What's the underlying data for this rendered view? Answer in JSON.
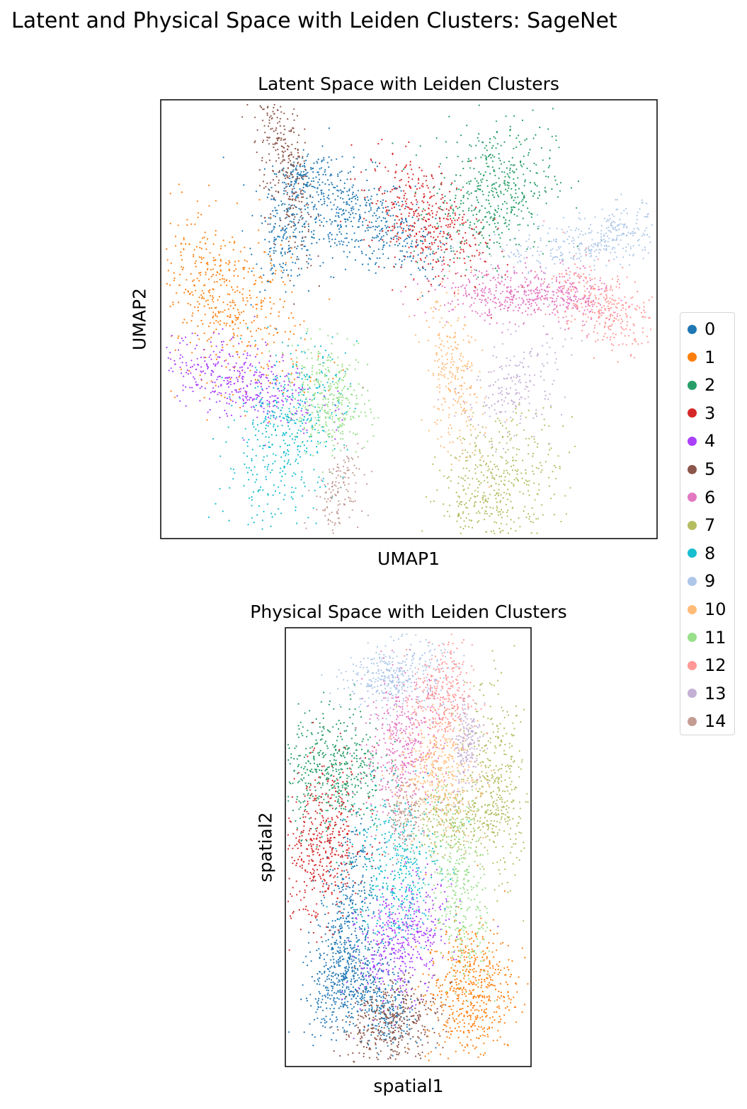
{
  "figure": {
    "suptitle": "Latent and Physical Space with Leiden Clusters: SageNet"
  },
  "colors": {
    "0": "#1f77b4",
    "1": "#ff7f0e",
    "2": "#279e68",
    "3": "#d62728",
    "4": "#aa40fc",
    "5": "#8c564b",
    "6": "#e377c2",
    "7": "#b5bd61",
    "8": "#17becf",
    "9": "#aec7e8",
    "10": "#ffbb78",
    "11": "#98df8a",
    "12": "#ff9896",
    "13": "#c5b0d5",
    "14": "#c49c94"
  },
  "legend": {
    "title": "",
    "placement": "right-center",
    "entries": [
      "0",
      "1",
      "2",
      "3",
      "4",
      "5",
      "6",
      "7",
      "8",
      "9",
      "10",
      "11",
      "12",
      "13",
      "14"
    ]
  },
  "chart_data": [
    {
      "type": "scatter",
      "title": "Latent Space with Leiden Clusters",
      "xlabel": "UMAP1",
      "ylabel": "UMAP2",
      "xlim": [
        0,
        100
      ],
      "ylim": [
        0,
        100
      ],
      "ticks": "none",
      "grid": false,
      "color_by": "leiden",
      "clusters": [
        {
          "label": "0",
          "blobs": [
            [
              37,
              74,
              7,
              6,
              420,
              -0.3
            ],
            [
              25,
              68,
              3,
              5,
              160,
              0.2
            ],
            [
              28,
              82,
              3,
              3,
              120,
              0.4
            ],
            [
              49,
              68,
              4,
              4,
              120,
              -0.3
            ]
          ]
        },
        {
          "label": "1",
          "blobs": [
            [
              13,
              54,
              8,
              10,
              520,
              -0.4
            ]
          ]
        },
        {
          "label": "2",
          "blobs": [
            [
              67,
              79,
              6,
              8,
              480,
              0.2
            ]
          ]
        },
        {
          "label": "3",
          "blobs": [
            [
              53,
              73,
              6,
              7,
              420,
              -0.4
            ]
          ]
        },
        {
          "label": "4",
          "blobs": [
            [
              16,
              36,
              8,
              5,
              420,
              -0.5
            ]
          ]
        },
        {
          "label": "5",
          "blobs": [
            [
              25,
              85,
              3,
              11,
              320,
              -0.6
            ]
          ]
        },
        {
          "label": "6",
          "blobs": [
            [
              68,
              56,
              7,
              3,
              280,
              -0.1
            ],
            [
              80,
              55,
              5,
              3,
              220,
              0
            ]
          ]
        },
        {
          "label": "7",
          "blobs": [
            [
              68,
              12,
              6,
              8,
              460,
              0.25
            ]
          ]
        },
        {
          "label": "8",
          "blobs": [
            [
              25,
              24,
              6,
              10,
              460,
              0.35
            ]
          ]
        },
        {
          "label": "9",
          "blobs": [
            [
              86,
              67,
              9,
              3,
              280,
              0.35
            ],
            [
              93,
              71,
              3,
              3,
              80,
              0
            ]
          ]
        },
        {
          "label": "10",
          "blobs": [
            [
              59,
              36,
              3,
              9,
              260,
              -0.3
            ]
          ]
        },
        {
          "label": "11",
          "blobs": [
            [
              34,
              32,
              4,
              6,
              340,
              -0.2
            ]
          ]
        },
        {
          "label": "12",
          "blobs": [
            [
              89,
              53,
              5,
              5,
              320,
              -0.4
            ]
          ]
        },
        {
          "label": "13",
          "blobs": [
            [
              71,
              35,
              5,
              6,
              200,
              0.3
            ]
          ]
        },
        {
          "label": "14",
          "blobs": [
            [
              36,
              11,
              2.5,
              5,
              140,
              0.4
            ]
          ]
        }
      ]
    },
    {
      "type": "scatter",
      "title": "Physical Space with Leiden Clusters",
      "xlabel": "spatial1",
      "ylabel": "spatial2",
      "xlim": [
        0,
        100
      ],
      "ylim": [
        0,
        100
      ],
      "ticks": "none",
      "grid": false,
      "color_by": "leiden",
      "clusters": [
        {
          "label": "0",
          "blobs": [
            [
              24,
              31,
              6,
              12,
              500,
              0.5
            ],
            [
              40,
              12,
              7,
              4,
              220,
              -0.2
            ],
            [
              28,
              20,
              8,
              5,
              260,
              0.3
            ]
          ]
        },
        {
          "label": "1",
          "blobs": [
            [
              75,
              17,
              9,
              8,
              560,
              0.1
            ]
          ]
        },
        {
          "label": "2",
          "blobs": [
            [
              20,
              68,
              10,
              7,
              480,
              0
            ]
          ]
        },
        {
          "label": "3",
          "blobs": [
            [
              15,
              50,
              9,
              9,
              460,
              0.2
            ]
          ]
        },
        {
          "label": "4",
          "blobs": [
            [
              48,
              29,
              9,
              7,
              460,
              0.3
            ]
          ]
        },
        {
          "label": "5",
          "blobs": [
            [
              43,
              10,
              10,
              5,
              400,
              0.2
            ]
          ]
        },
        {
          "label": "6",
          "blobs": [
            [
              48,
              73,
              8,
              8,
              420,
              0.1
            ]
          ]
        },
        {
          "label": "7",
          "blobs": [
            [
              86,
              64,
              6,
              11,
              320,
              -0.25
            ],
            [
              71,
              56,
              11,
              4,
              280,
              0.2
            ]
          ]
        },
        {
          "label": "8",
          "blobs": [
            [
              45,
              45,
              9,
              9,
              420,
              0
            ]
          ]
        },
        {
          "label": "9",
          "blobs": [
            [
              45,
              89,
              10,
              4,
              360,
              0.1
            ]
          ]
        },
        {
          "label": "10",
          "blobs": [
            [
              62,
              67,
              8,
              6,
              360,
              -0.1
            ]
          ]
        },
        {
          "label": "11",
          "blobs": [
            [
              71,
              41,
              6,
              11,
              340,
              -0.3
            ]
          ]
        },
        {
          "label": "12",
          "blobs": [
            [
              64,
              84,
              6,
              6,
              300,
              0
            ]
          ]
        },
        {
          "label": "13",
          "blobs": [
            [
              74,
              74,
              3,
              6,
              180,
              0.2
            ]
          ]
        },
        {
          "label": "14",
          "blobs": [
            [
              48,
              58,
              4,
              4,
              140,
              0
            ]
          ]
        }
      ]
    }
  ]
}
